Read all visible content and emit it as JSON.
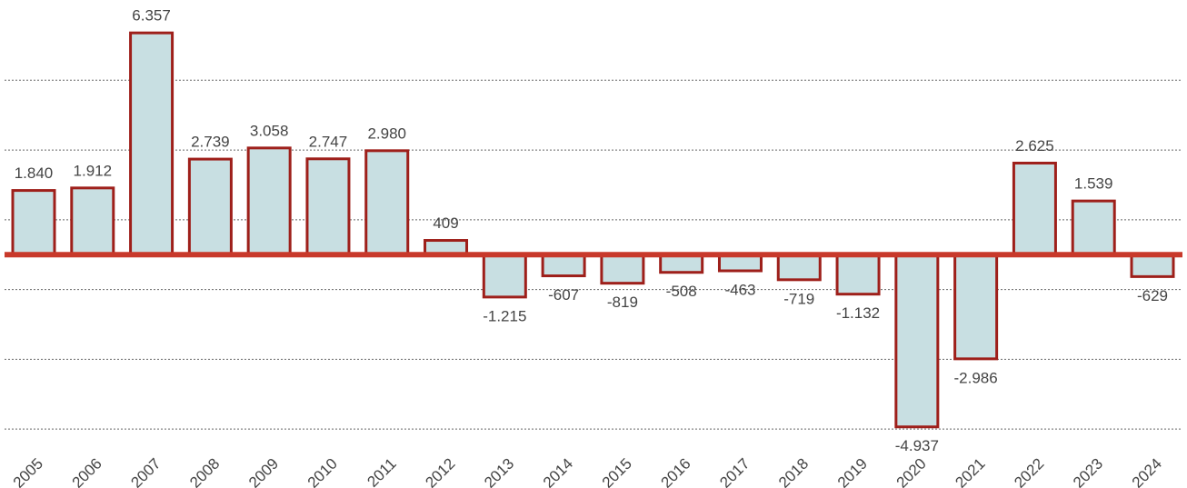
{
  "chart_data": {
    "type": "bar",
    "categories": [
      "2005",
      "2006",
      "2007",
      "2008",
      "2009",
      "2010",
      "2011",
      "2012",
      "2013",
      "2014",
      "2015",
      "2016",
      "2017",
      "2018",
      "2019",
      "2020",
      "2021",
      "2022",
      "2023",
      "2024"
    ],
    "values": [
      1840,
      1912,
      6357,
      2739,
      3058,
      2747,
      2980,
      409,
      -1215,
      -607,
      -819,
      -508,
      -463,
      -719,
      -1132,
      -4937,
      -2986,
      2625,
      1539,
      -629
    ],
    "value_labels": [
      "1.840",
      "1.912",
      "6.357",
      "2.739",
      "3.058",
      "2.747",
      "2.980",
      "409",
      "-1.215",
      "-607",
      "-819",
      "-508",
      "-463",
      "-719",
      "-1.132",
      "-4.937",
      "-2.986",
      "2.625",
      "1.539",
      "-629"
    ],
    "color": "#c8dfe2",
    "edge_color": "#9e1f1a",
    "zero_line_color": "#c8392b",
    "ylim": [
      -5100,
      7300
    ],
    "yticks": [
      -5000,
      -3000,
      -1000,
      1000,
      3000,
      5000
    ],
    "grid": true
  }
}
